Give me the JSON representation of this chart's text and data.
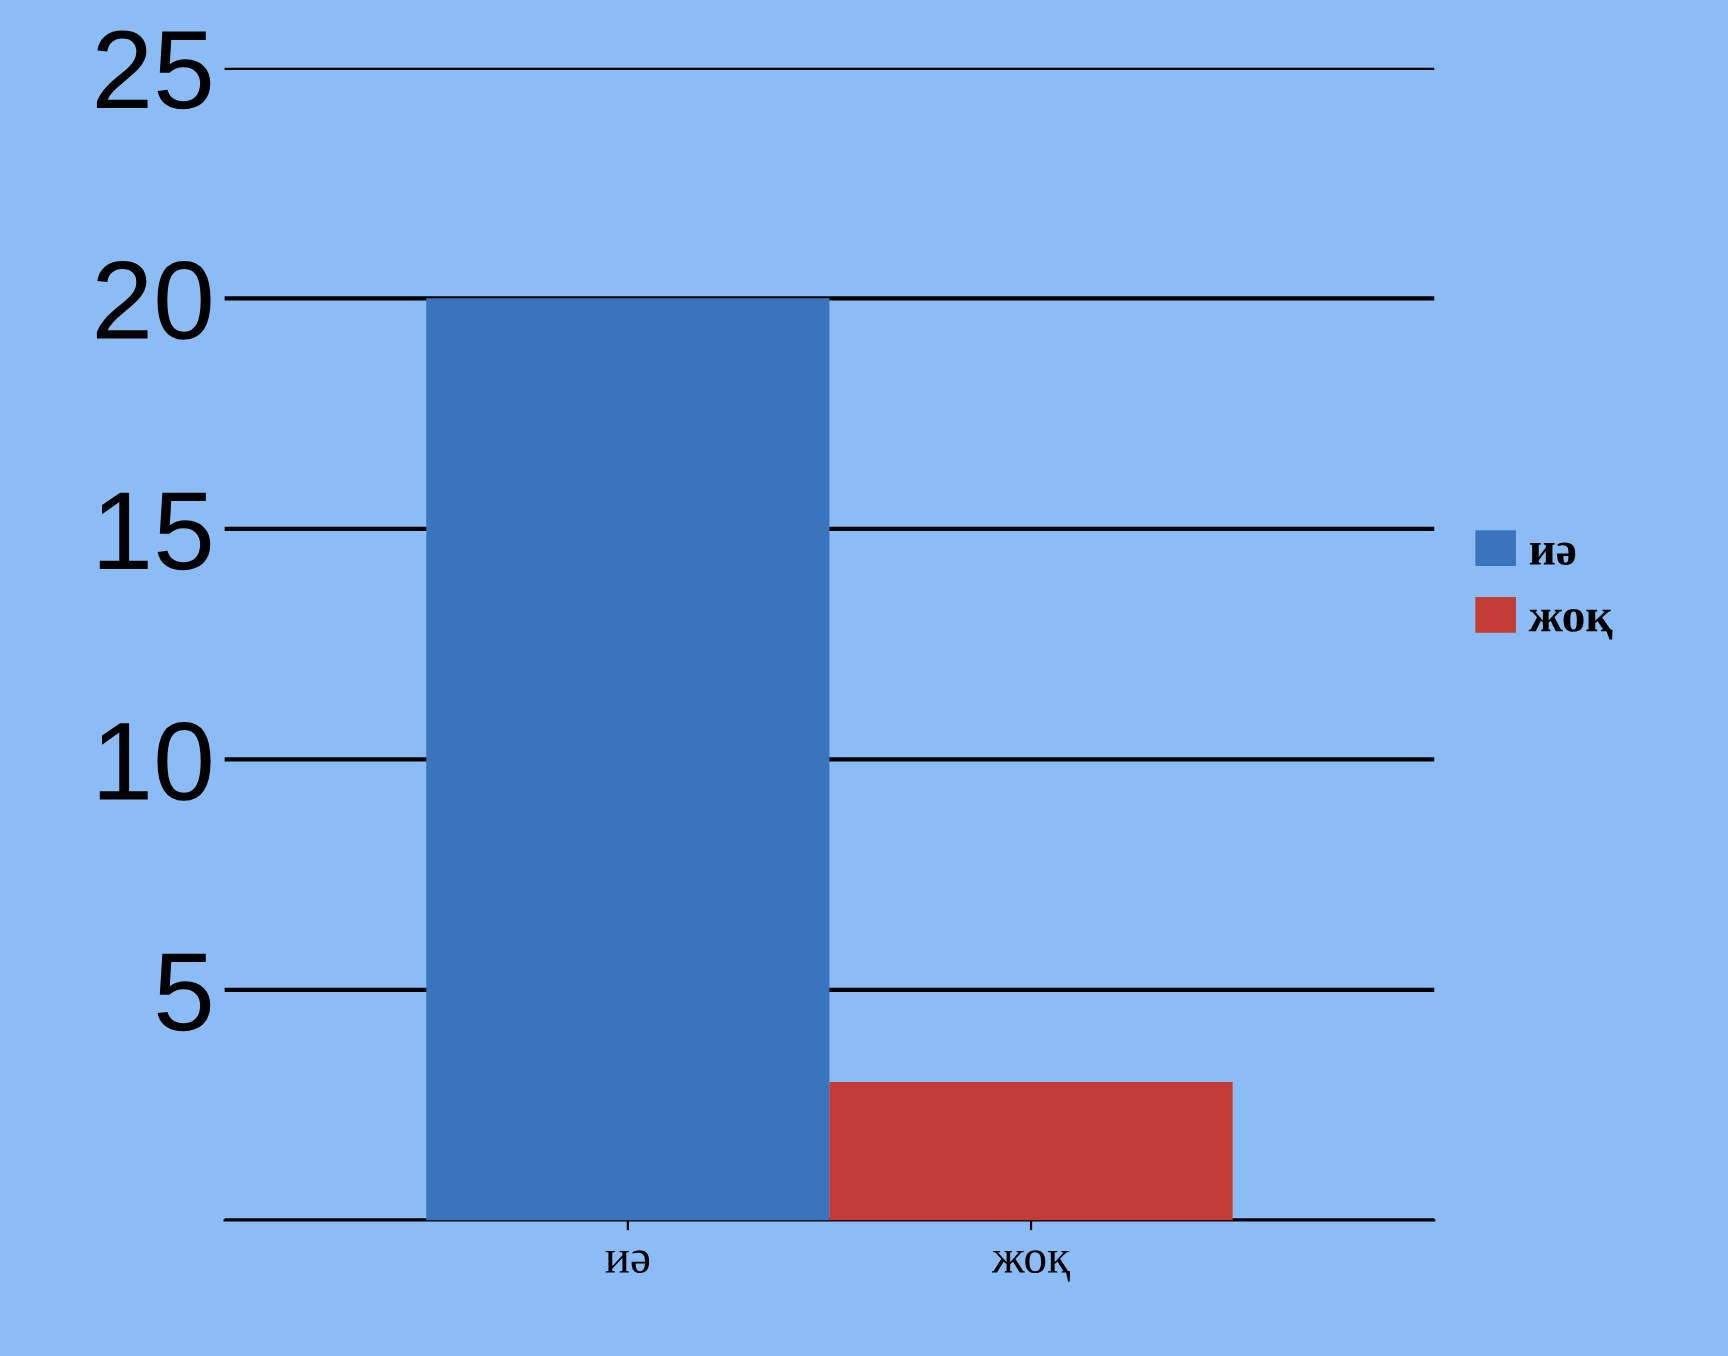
{
  "chart_data": {
    "type": "bar",
    "categories": [
      "иә",
      "жоқ"
    ],
    "series": [
      {
        "name": "иә",
        "color": "#3a74bd",
        "values": [
          20,
          null
        ]
      },
      {
        "name": "жоқ",
        "color": "#c43b35",
        "values": [
          null,
          3
        ]
      }
    ],
    "ylim": [
      0,
      25
    ],
    "yticks": [
      {
        "value": 0,
        "label": null
      },
      5,
      10,
      15,
      20,
      25
    ],
    "grid": "y",
    "legend": "right"
  }
}
